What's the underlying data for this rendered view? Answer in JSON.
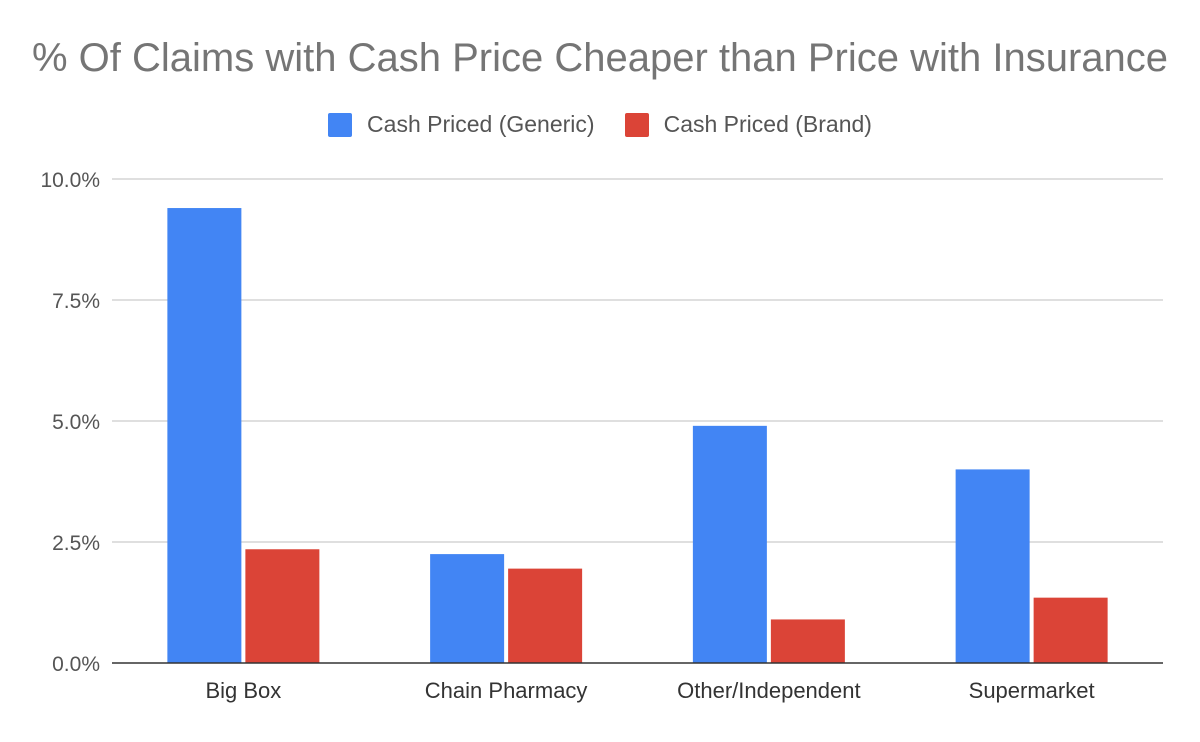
{
  "chart_data": {
    "type": "bar",
    "title": "% Of Claims with Cash Price Cheaper than Price with Insurance",
    "categories": [
      "Big Box",
      "Chain Pharmacy",
      "Other/Independent",
      "Supermarket"
    ],
    "series": [
      {
        "name": "Cash Priced (Generic)",
        "color": "#4285f4",
        "values": [
          9.4,
          2.25,
          4.9,
          4.0
        ]
      },
      {
        "name": "Cash Priced (Brand)",
        "color": "#db4437",
        "values": [
          2.35,
          1.95,
          0.9,
          1.35
        ]
      }
    ],
    "ylim": [
      0,
      10
    ],
    "yticks": [
      0,
      2.5,
      5,
      7.5,
      10
    ],
    "ytick_labels": [
      "0.0%",
      "2.5%",
      "5.0%",
      "7.5%",
      "10.0%"
    ],
    "xlabel": "",
    "ylabel": "",
    "grid": true,
    "legend_position": "top-center"
  }
}
